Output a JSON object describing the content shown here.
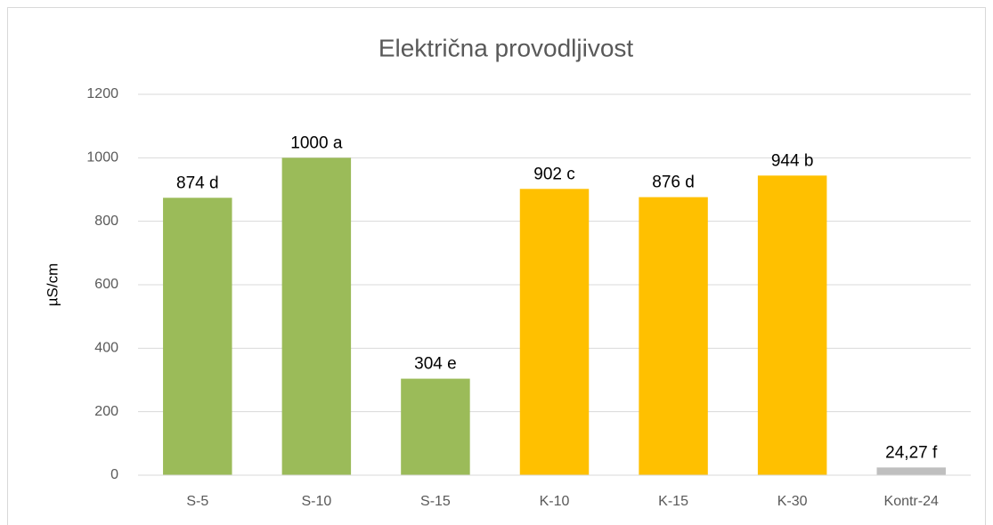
{
  "chart_data": {
    "type": "bar",
    "title": "Električna provodljivost",
    "ylabel": "µS/cm",
    "categories": [
      "S-5",
      "S-10",
      "S-15",
      "K-10",
      "K-15",
      "K-30",
      "Kontr-24"
    ],
    "values": [
      874,
      1000,
      304,
      902,
      876,
      944,
      24.27
    ],
    "value_labels": [
      "874 d",
      "1000 a",
      "304 e",
      "902 c",
      "876 d",
      "944 b",
      "24,27 f"
    ],
    "colors": [
      "#9bbb59",
      "#9bbb59",
      "#9bbb59",
      "#ffc000",
      "#ffc000",
      "#ffc000",
      "#bfbfbf"
    ],
    "ylim": [
      0,
      1200
    ],
    "yticks": [
      0,
      200,
      400,
      600,
      800,
      1000,
      1200
    ],
    "grid": true
  }
}
